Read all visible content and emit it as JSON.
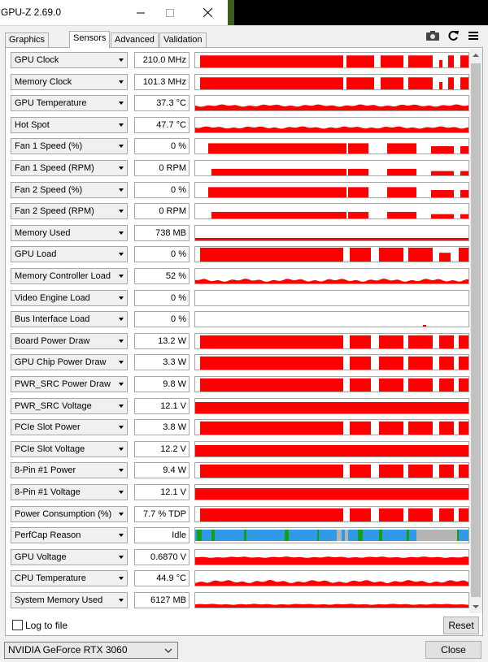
{
  "window": {
    "title": "GPU-Z 2.69.0"
  },
  "tabs": [
    {
      "label": "Graphics Card",
      "active": false
    },
    {
      "label": "Sensors",
      "active": true
    },
    {
      "label": "Advanced",
      "active": false
    },
    {
      "label": "Validation",
      "active": false
    }
  ],
  "toolbar": {
    "icons": [
      "camera-icon",
      "refresh-icon",
      "menu-icon"
    ]
  },
  "colors": {
    "graph": "#ff0000",
    "perfcap_blue": "#3399e6",
    "perfcap_green": "#14a014",
    "perfcap_gray": "#b4b4b4"
  },
  "sensors": [
    {
      "name": "GPU Clock",
      "value": "210.0 MHz",
      "graph": "clock"
    },
    {
      "name": "Memory Clock",
      "value": "101.3 MHz",
      "graph": "clock"
    },
    {
      "name": "GPU Temperature",
      "value": "37.3 °C",
      "graph": "temp"
    },
    {
      "name": "Hot Spot",
      "value": "47.7 °C",
      "graph": "temp"
    },
    {
      "name": "Fan 1 Speed (%)",
      "value": "0 %",
      "graph": "fan"
    },
    {
      "name": "Fan 1 Speed (RPM)",
      "value": "0 RPM",
      "graph": "fan_rpm"
    },
    {
      "name": "Fan 2 Speed (%)",
      "value": "0 %",
      "graph": "fan"
    },
    {
      "name": "Fan 2 Speed (RPM)",
      "value": "0 RPM",
      "graph": "fan_rpm"
    },
    {
      "name": "Memory Used",
      "value": "738 MB",
      "graph": "memused"
    },
    {
      "name": "GPU Load",
      "value": "0 %",
      "graph": "load"
    },
    {
      "name": "Memory Controller Load",
      "value": "52 %",
      "graph": "mcload"
    },
    {
      "name": "Video Engine Load",
      "value": "0 %",
      "graph": "empty"
    },
    {
      "name": "Bus Interface Load",
      "value": "0 %",
      "graph": "bus"
    },
    {
      "name": "Board Power Draw",
      "value": "13.2 W",
      "graph": "power"
    },
    {
      "name": "GPU Chip Power Draw",
      "value": "3.3 W",
      "graph": "power"
    },
    {
      "name": "PWR_SRC Power Draw",
      "value": "9.8 W",
      "graph": "power"
    },
    {
      "name": "PWR_SRC Voltage",
      "value": "12.1 V",
      "graph": "flat"
    },
    {
      "name": "PCIe Slot Power",
      "value": "3.8 W",
      "graph": "power"
    },
    {
      "name": "PCIe Slot Voltage",
      "value": "12.2 V",
      "graph": "flat"
    },
    {
      "name": "8-Pin #1 Power",
      "value": "9.4 W",
      "graph": "power"
    },
    {
      "name": "8-Pin #1 Voltage",
      "value": "12.1 V",
      "graph": "flat"
    },
    {
      "name": "Power Consumption (%)",
      "value": "7.7 % TDP",
      "graph": "power"
    },
    {
      "name": "PerfCap Reason",
      "value": "Idle",
      "graph": "perfcap"
    },
    {
      "name": "GPU Voltage",
      "value": "0.6870 V",
      "graph": "voltage"
    },
    {
      "name": "CPU Temperature",
      "value": "44.9 °C",
      "graph": "cputemp"
    },
    {
      "name": "System Memory Used",
      "value": "6127 MB",
      "graph": "sysmem"
    }
  ],
  "footer": {
    "log_label": "Log to file",
    "log_checked": false,
    "reset_label": "Reset",
    "device": "NVIDIA GeForce RTX 3060",
    "close_label": "Close"
  }
}
